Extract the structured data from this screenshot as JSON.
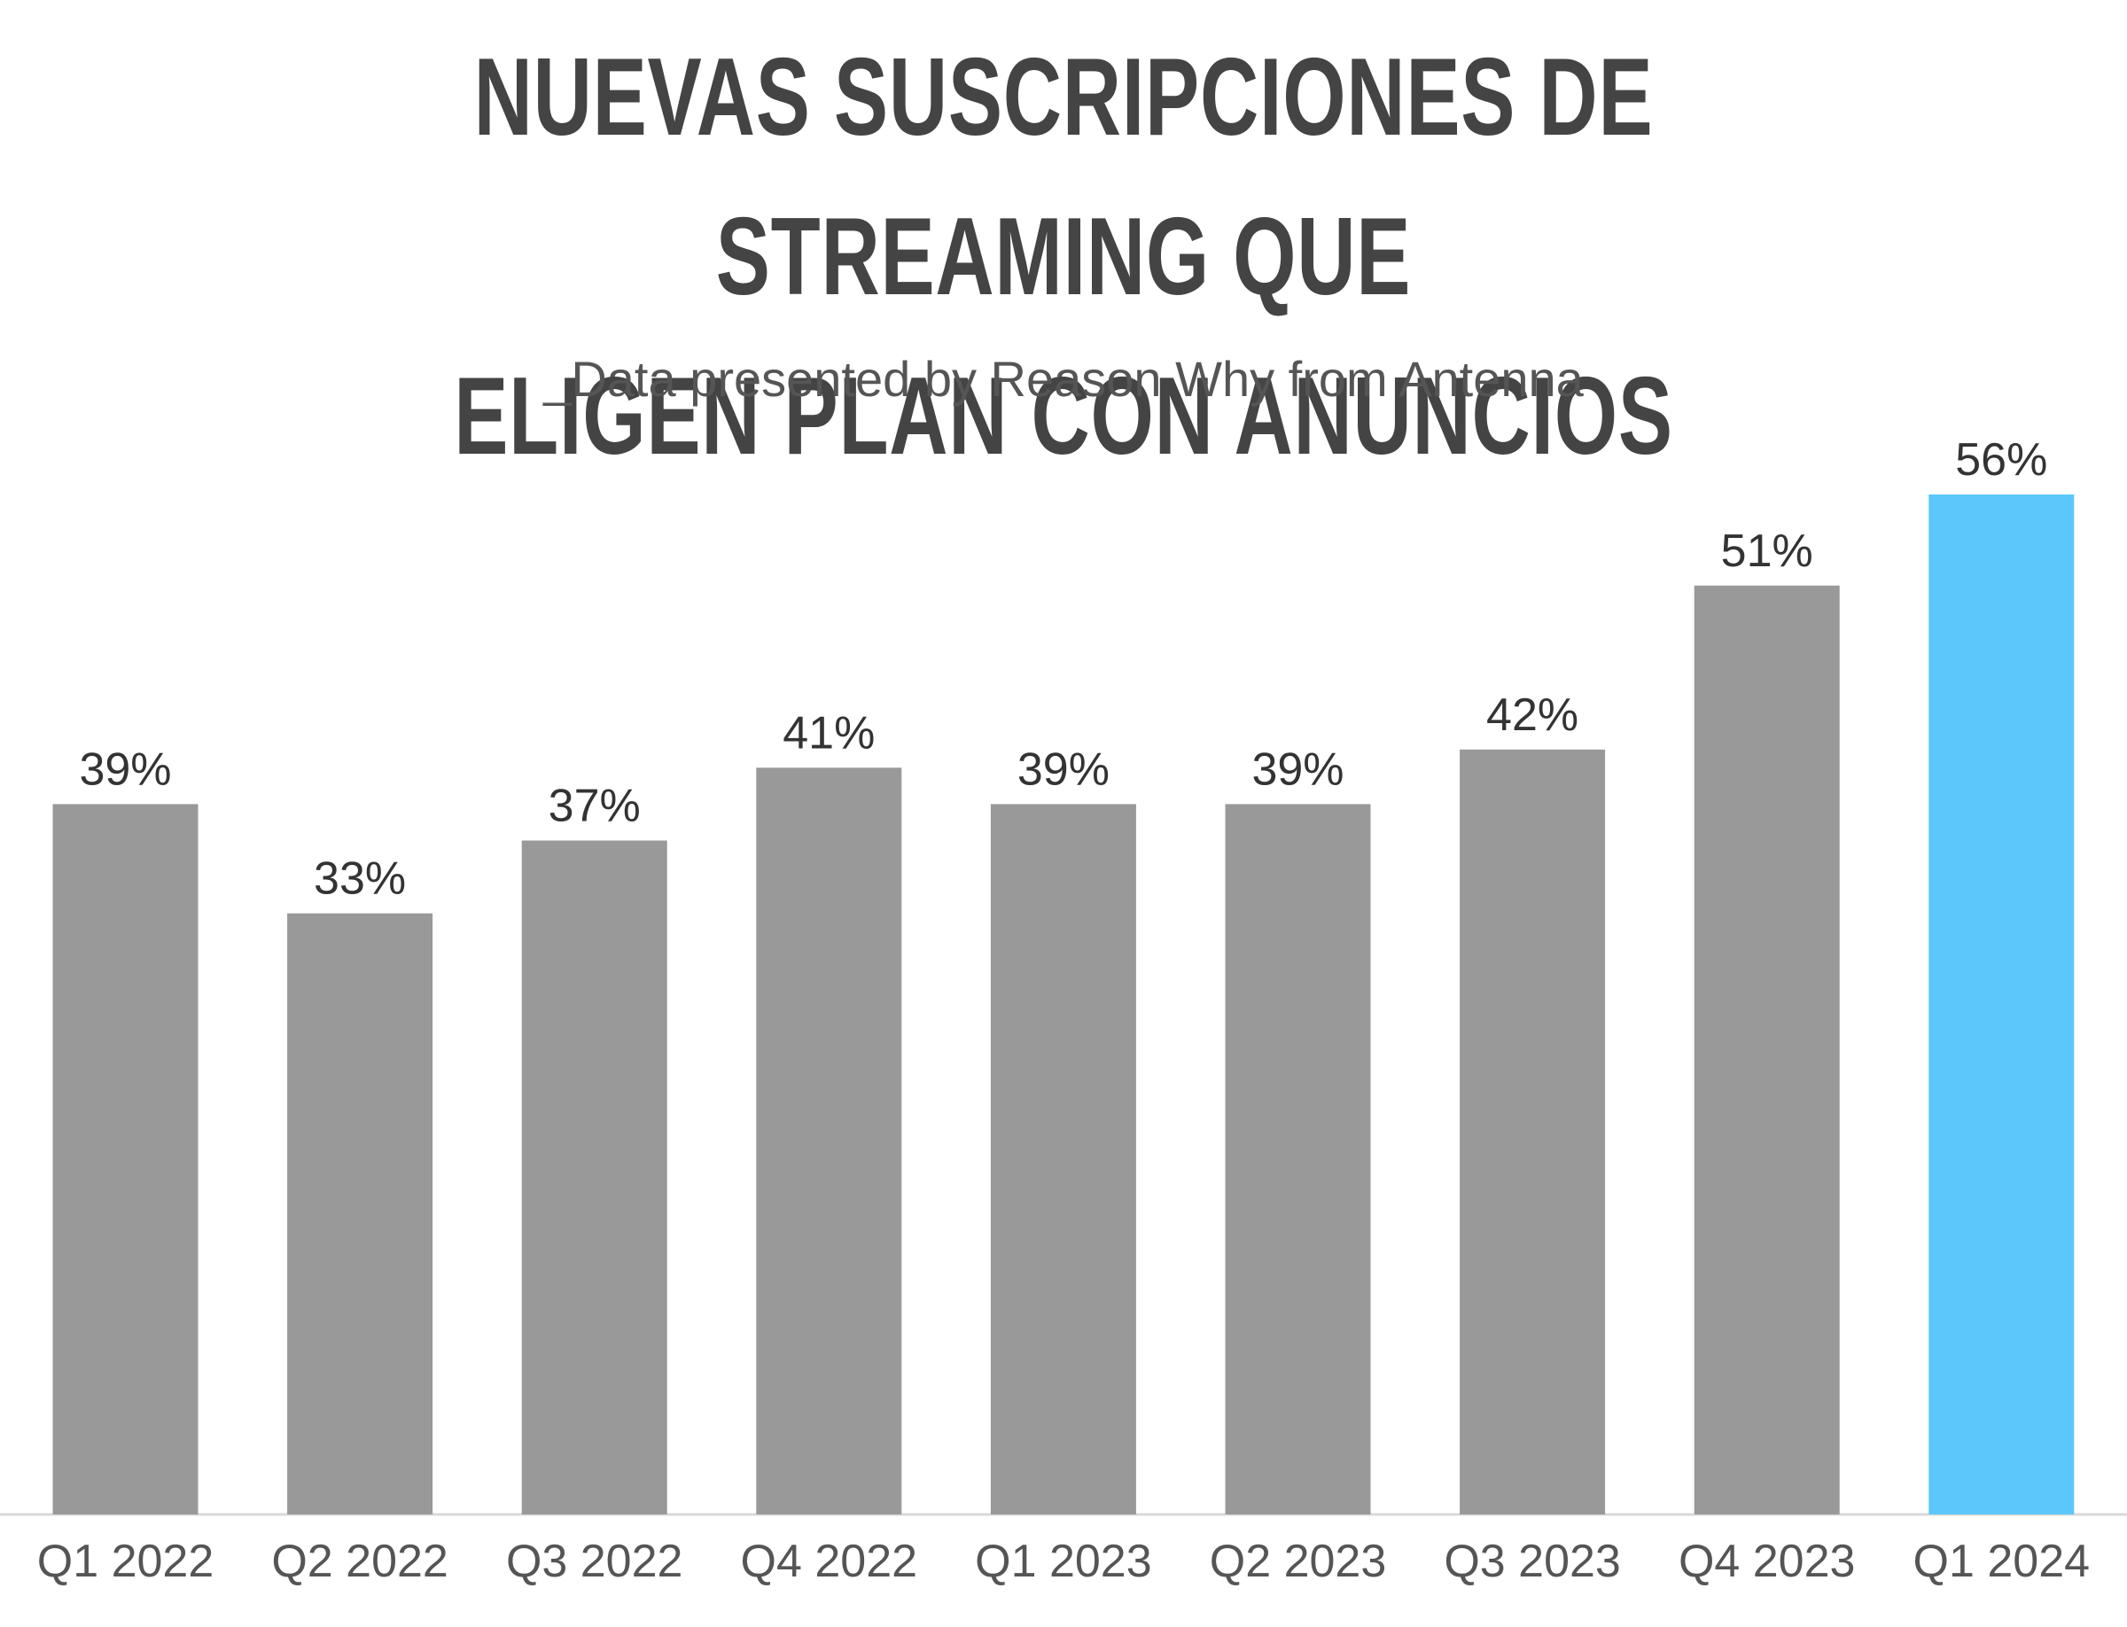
{
  "chart_data": {
    "type": "bar",
    "title_lines": [
      "NUEVAS SUSCRIPCIONES DE STREAMING QUE",
      "ELIGEN PLAN CON ANUNCIOS"
    ],
    "subtitle": "_Data presented by Reason Why from Antenna",
    "categories": [
      "Q1 2022",
      "Q2 2022",
      "Q3 2022",
      "Q4 2022",
      "Q1 2023",
      "Q2 2023",
      "Q3 2023",
      "Q4 2023",
      "Q1 2024"
    ],
    "values": [
      39,
      33,
      37,
      41,
      39,
      39,
      42,
      51,
      56
    ],
    "value_labels": [
      "39%",
      "33%",
      "37%",
      "41%",
      "39%",
      "39%",
      "42%",
      "51%",
      "56%"
    ],
    "ylim": [
      0,
      56
    ],
    "grid": false,
    "legend": "none",
    "colors": {
      "default_bar": "#999999",
      "highlight_bar": "#5BC8FC",
      "highlight_category": "Q1 2024",
      "title": "#444444",
      "text": "#333333",
      "axis_line": "#D9D9D9"
    }
  }
}
